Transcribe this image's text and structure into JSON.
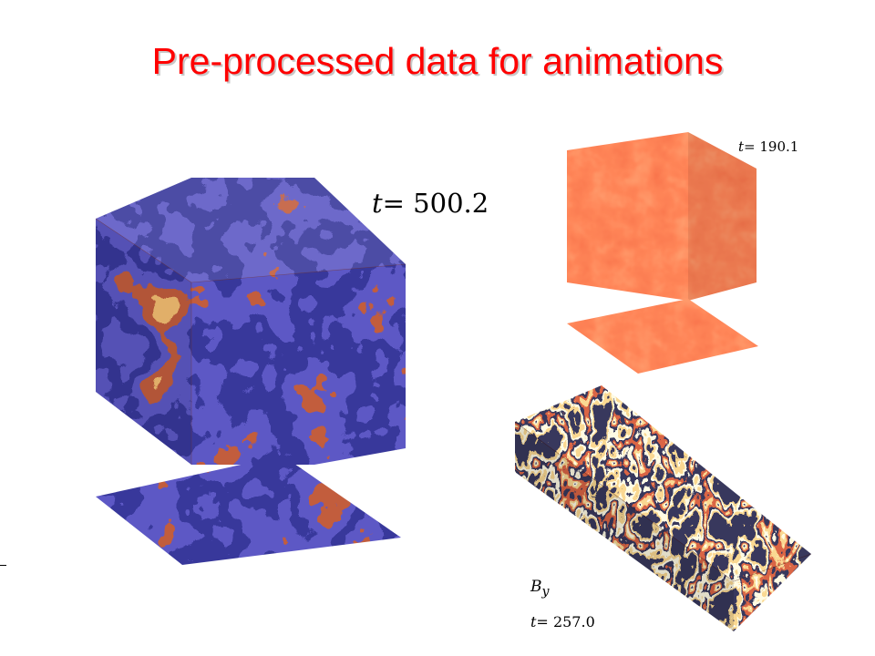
{
  "slide": {
    "title": "Pre-processed data for animations",
    "title_color": "#ff0000"
  },
  "panels": {
    "main_cube": {
      "time_prefix": "t=",
      "time_value": "500.2",
      "colormap": [
        "#fff9b0",
        "#f2d35a",
        "#e8842c",
        "#8a1d0c",
        "#1b1a8f",
        "#0b0b55"
      ]
    },
    "top_cube": {
      "time_prefix": "t=",
      "time_value": "190.1",
      "colormap": [
        "#ff3d1a",
        "#ff6a33",
        "#e92310"
      ]
    },
    "long_box": {
      "field_symbol": "B",
      "field_subscript": "y",
      "time_prefix": "t=",
      "time_value": "257.0",
      "colormap": [
        "#fff6c8",
        "#f5b14a",
        "#b2220e",
        "#0a0a1c"
      ]
    }
  }
}
